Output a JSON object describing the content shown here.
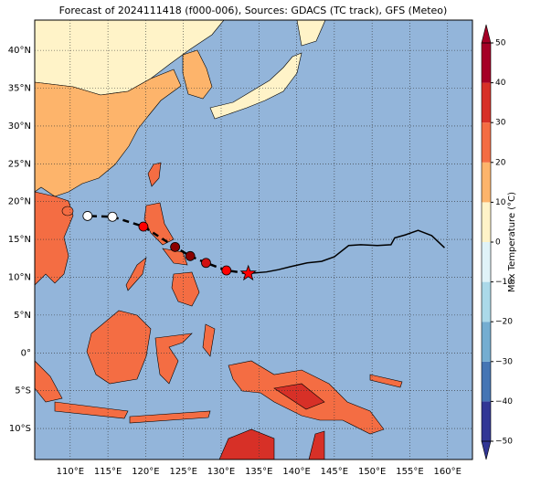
{
  "chart_data": {
    "type": "map-track",
    "title": "Forecast of 2024111418 (f000-006), Sources: GDACS (TC track), GFS (Meteo)",
    "xlim": [
      105.3,
      163.3
    ],
    "ylim": [
      -14.1,
      44
    ],
    "xticks": [
      {
        "value": 110,
        "label": "110°E"
      },
      {
        "value": 115,
        "label": "115°E"
      },
      {
        "value": 120,
        "label": "120°E"
      },
      {
        "value": 125,
        "label": "125°E"
      },
      {
        "value": 130,
        "label": "130°E"
      },
      {
        "value": 135,
        "label": "135°E"
      },
      {
        "value": 140,
        "label": "140°E"
      },
      {
        "value": 145,
        "label": "145°E"
      },
      {
        "value": 150,
        "label": "150°E"
      },
      {
        "value": 155,
        "label": "155°E"
      },
      {
        "value": 160,
        "label": "160°E"
      }
    ],
    "yticks": [
      {
        "value": -10,
        "label": "10°S"
      },
      {
        "value": -5,
        "label": "5°S"
      },
      {
        "value": 0,
        "label": "0°"
      },
      {
        "value": 5,
        "label": "5°N"
      },
      {
        "value": 10,
        "label": "10°N"
      },
      {
        "value": 15,
        "label": "15°N"
      },
      {
        "value": 20,
        "label": "20°N"
      },
      {
        "value": 25,
        "label": "25°N"
      },
      {
        "value": 30,
        "label": "30°N"
      },
      {
        "value": 35,
        "label": "35°N"
      },
      {
        "value": 40,
        "label": "40°N"
      }
    ],
    "grid": true,
    "series": [
      {
        "name": "past",
        "color": "#000000",
        "x": [
          159.6,
          157.9,
          156.1,
          154.4,
          153.0,
          152.5,
          150.7,
          148.5,
          146.9,
          145.0,
          143.3,
          141.4,
          139.2,
          137.6,
          136.0,
          133.6
        ],
        "values": [
          13.9,
          15.5,
          16.2,
          15.6,
          15.2,
          14.3,
          14.2,
          14.3,
          14.2,
          12.7,
          12.1,
          11.9,
          11.4,
          11.0,
          10.7,
          10.5
        ]
      },
      {
        "name": "forecast",
        "color": "#000000",
        "x": [
          133.6,
          130.7,
          128.0,
          125.9,
          123.9,
          119.7,
          115.6,
          112.3
        ],
        "values": [
          10.5,
          10.9,
          11.9,
          12.8,
          14.0,
          16.7,
          18.0,
          18.1
        ],
        "marker_colors": [
          "#ff0000",
          "#ff0000",
          "#d01010",
          "#8b0000",
          "#8b0000",
          "#ff0000",
          "#ffffff",
          "#ffffff"
        ]
      }
    ],
    "colorbar": {
      "label": "Max Temperature (°C)",
      "lim": [
        -50,
        50
      ],
      "ticks": [
        {
          "value": -50,
          "label": "−50"
        },
        {
          "value": -40,
          "label": "−40"
        },
        {
          "value": -30,
          "label": "−30"
        },
        {
          "value": -20,
          "label": "−20"
        },
        {
          "value": -10,
          "label": "−10"
        },
        0,
        10,
        20,
        30,
        40,
        50
      ],
      "colors": [
        "#313695",
        "#4575b4",
        "#74add1",
        "#abd9e9",
        "#e0f3f8",
        "#fff3c8",
        "#fdb46b",
        "#f46d43",
        "#d73027",
        "#a50026"
      ]
    }
  }
}
